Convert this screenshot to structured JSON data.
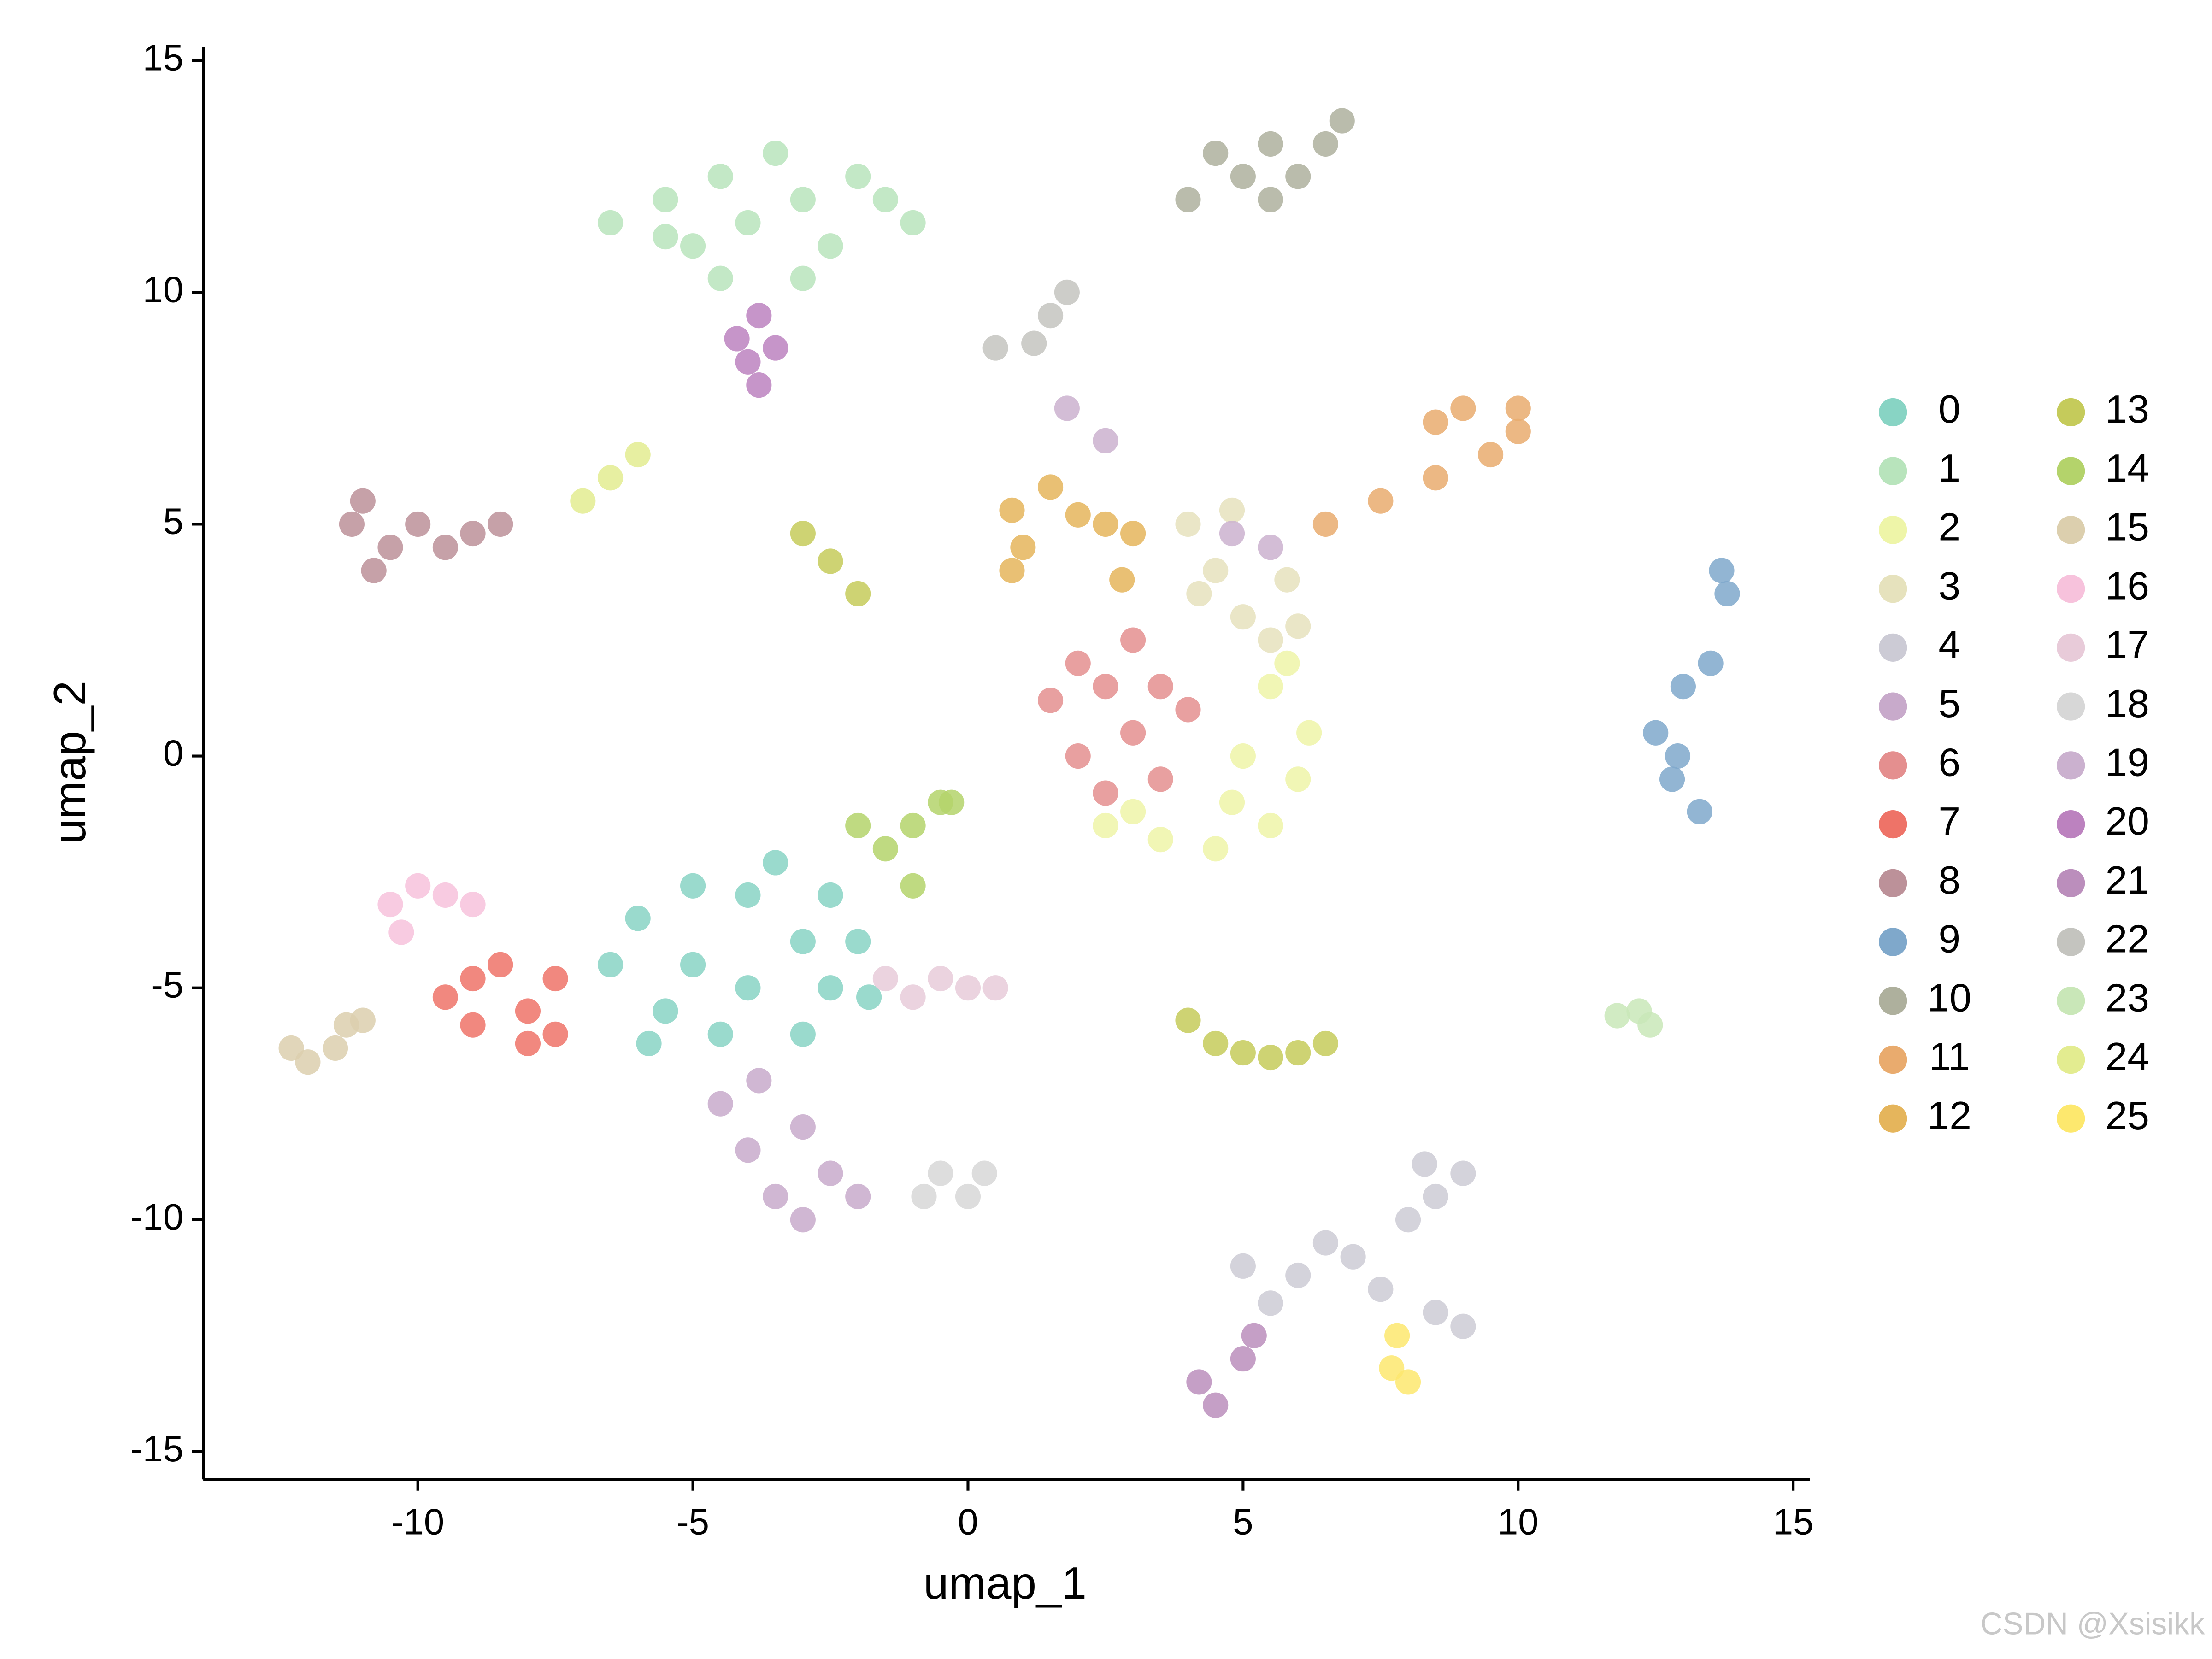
{
  "chart_data": {
    "type": "scatter",
    "xlabel": "umap_1",
    "ylabel": "umap_2",
    "xlim": [
      -13.9,
      15.3
    ],
    "ylim": [
      -15.6,
      15.3
    ],
    "xticks": [
      -10,
      -5,
      0,
      5,
      10,
      15
    ],
    "yticks": [
      -15,
      -10,
      -5,
      0,
      5,
      10,
      15
    ],
    "grid": false,
    "legend": "right",
    "watermark": "CSDN @Xsisikk",
    "series": [
      {
        "name": "0",
        "color": "#88d4c4",
        "x": [
          -6.5,
          -6,
          -5.5,
          -5,
          -5,
          -4.5,
          -4,
          -4,
          -3.5,
          -3,
          -3,
          -2.5,
          -2.5,
          -2,
          -1.8,
          -5.8
        ],
        "values": [
          -4.5,
          -3.5,
          -5.5,
          -2.8,
          -4.5,
          -6,
          -3,
          -5,
          -2.3,
          -4,
          -6,
          -3,
          -5,
          -4,
          -5.2,
          -6.2
        ]
      },
      {
        "name": "1",
        "color": "#b8e4bc",
        "x": [
          -6.5,
          -5.5,
          -5,
          -4.5,
          -4,
          -3.5,
          -3,
          -2.5,
          -2,
          -1.5,
          -1,
          -4.5,
          -3,
          -5.5
        ],
        "values": [
          11.5,
          12,
          11,
          12.5,
          11.5,
          13,
          12,
          11,
          12.5,
          12,
          11.5,
          10.3,
          10.3,
          11.2
        ]
      },
      {
        "name": "2",
        "color": "#eef5a8",
        "x": [
          2.5,
          3.5,
          4.5,
          5.5,
          6,
          6.2,
          5.5,
          5,
          4.8,
          5.8,
          3
        ],
        "values": [
          -1.5,
          -1.8,
          -2,
          -1.5,
          -0.5,
          0.5,
          1.5,
          0,
          -1,
          2,
          -1.2
        ]
      },
      {
        "name": "3",
        "color": "#e6e2bd",
        "x": [
          4,
          4.5,
          5,
          5.5,
          4.2,
          5.8,
          4.8,
          6
        ],
        "values": [
          5,
          4,
          3,
          2.5,
          3.5,
          3.8,
          5.3,
          2.8
        ]
      },
      {
        "name": "4",
        "color": "#cccbd5",
        "x": [
          5,
          6,
          7,
          8,
          8.5,
          9,
          8.5,
          9,
          7.5,
          6.5,
          5.5,
          8.3
        ],
        "values": [
          -11,
          -11.2,
          -10.8,
          -10,
          -9.5,
          -9,
          -12,
          -12.3,
          -11.5,
          -10.5,
          -11.8,
          -8.8
        ]
      },
      {
        "name": "5",
        "color": "#c8aacb",
        "x": [
          -4.5,
          -4,
          -3.5,
          -3,
          -2.5,
          -2,
          -3.8,
          -3
        ],
        "values": [
          -7.5,
          -8.5,
          -9.5,
          -8,
          -9,
          -9.5,
          -7,
          -10
        ]
      },
      {
        "name": "6",
        "color": "#e48f8f",
        "x": [
          1.5,
          2,
          2.5,
          3,
          3.5,
          2.5,
          3.5,
          4,
          2,
          3
        ],
        "values": [
          1.2,
          0,
          1.5,
          0.5,
          1.5,
          -0.8,
          -0.5,
          1,
          2,
          2.5
        ]
      },
      {
        "name": "7",
        "color": "#ee7368",
        "x": [
          -9.5,
          -9,
          -8.5,
          -8,
          -7.5,
          -7.5,
          -9,
          -8
        ],
        "values": [
          -5.2,
          -5.8,
          -4.5,
          -5.5,
          -6,
          -4.8,
          -4.8,
          -6.2
        ]
      },
      {
        "name": "8",
        "color": "#bc9199",
        "x": [
          -11.2,
          -11,
          -10.5,
          -10,
          -9.5,
          -10.8,
          -9,
          -8.5
        ],
        "values": [
          5,
          5.5,
          4.5,
          5,
          4.5,
          4,
          4.8,
          5
        ]
      },
      {
        "name": "9",
        "color": "#7fa8cb",
        "x": [
          12.5,
          12.8,
          13,
          13.3,
          13.5,
          13.8,
          12.9,
          13.7
        ],
        "values": [
          0.5,
          -0.5,
          1.5,
          -1.2,
          2,
          3.5,
          0,
          4
        ]
      },
      {
        "name": "10",
        "color": "#aeb09d",
        "x": [
          4.5,
          5,
          5.5,
          6,
          6.5,
          5.5,
          4,
          6.8
        ],
        "values": [
          13,
          12.5,
          13.2,
          12.5,
          13.2,
          12,
          12,
          13.7
        ]
      },
      {
        "name": "11",
        "color": "#e9ab6e",
        "x": [
          6.5,
          7.5,
          8.5,
          9.5,
          10,
          9,
          10,
          8.5
        ],
        "values": [
          5,
          5.5,
          6,
          6.5,
          7.5,
          7.5,
          7,
          7.2
        ]
      },
      {
        "name": "12",
        "color": "#e5b55c",
        "x": [
          0.8,
          1,
          1.5,
          2,
          2.5,
          3,
          0.8,
          2.8
        ],
        "values": [
          5.3,
          4.5,
          5.8,
          5.2,
          5,
          4.8,
          4,
          3.8
        ]
      },
      {
        "name": "13",
        "color": "#c5cb5b",
        "x": [
          4,
          4.5,
          5,
          5.5,
          6,
          6.5,
          -3,
          -2.5,
          -2
        ],
        "values": [
          -5.7,
          -6.2,
          -6.4,
          -6.5,
          -6.4,
          -6.2,
          4.8,
          4.2,
          3.5
        ]
      },
      {
        "name": "14",
        "color": "#b4d36b",
        "x": [
          -2,
          -1.5,
          -1,
          -1,
          -0.5,
          -0.3
        ],
        "values": [
          -1.5,
          -2,
          -1.5,
          -2.8,
          -1,
          -1
        ]
      },
      {
        "name": "15",
        "color": "#dccfae",
        "x": [
          -12.3,
          -12,
          -11.5,
          -11.3,
          -11
        ],
        "values": [
          -6.3,
          -6.6,
          -6.3,
          -5.8,
          -5.7
        ]
      },
      {
        "name": "16",
        "color": "#f7c2dc",
        "x": [
          -10.5,
          -10,
          -9.5,
          -9,
          -10.3
        ],
        "values": [
          -3.2,
          -2.8,
          -3,
          -3.2,
          -3.8
        ]
      },
      {
        "name": "17",
        "color": "#e8cbd9",
        "x": [
          -1.5,
          -1,
          -0.5,
          0,
          0.5
        ],
        "values": [
          -4.8,
          -5.2,
          -4.8,
          -5,
          -5
        ]
      },
      {
        "name": "18",
        "color": "#d7d7d7",
        "x": [
          -0.8,
          -0.5,
          0,
          0.3
        ],
        "values": [
          -9.5,
          -9,
          -9.5,
          -9
        ]
      },
      {
        "name": "19",
        "color": "#cbb1cf",
        "x": [
          1.8,
          2.5,
          4.8,
          5.5
        ],
        "values": [
          7.5,
          6.8,
          4.8,
          4.5
        ]
      },
      {
        "name": "20",
        "color": "#bc82bf",
        "x": [
          -4.2,
          -3.8,
          -4,
          -3.5,
          -3.8
        ],
        "values": [
          9,
          9.5,
          8.5,
          8.8,
          8
        ]
      },
      {
        "name": "21",
        "color": "#bb8ebc",
        "x": [
          4.2,
          4.5,
          5,
          5.2
        ],
        "values": [
          -13.5,
          -14,
          -13,
          -12.5
        ]
      },
      {
        "name": "22",
        "color": "#c4c4bf",
        "x": [
          1.2,
          1.5,
          1.8,
          0.5
        ],
        "values": [
          8.9,
          9.5,
          10,
          8.8
        ]
      },
      {
        "name": "23",
        "color": "#c9e7b8",
        "x": [
          11.8,
          12.2,
          12.4
        ],
        "values": [
          -5.6,
          -5.5,
          -5.8
        ]
      },
      {
        "name": "24",
        "color": "#e3ec90",
        "x": [
          -7,
          -6.5,
          -6
        ],
        "values": [
          5.5,
          6,
          6.5
        ]
      },
      {
        "name": "25",
        "color": "#fde86e",
        "x": [
          7.7,
          8,
          7.8
        ],
        "values": [
          -13.2,
          -13.5,
          -12.5
        ]
      }
    ]
  }
}
